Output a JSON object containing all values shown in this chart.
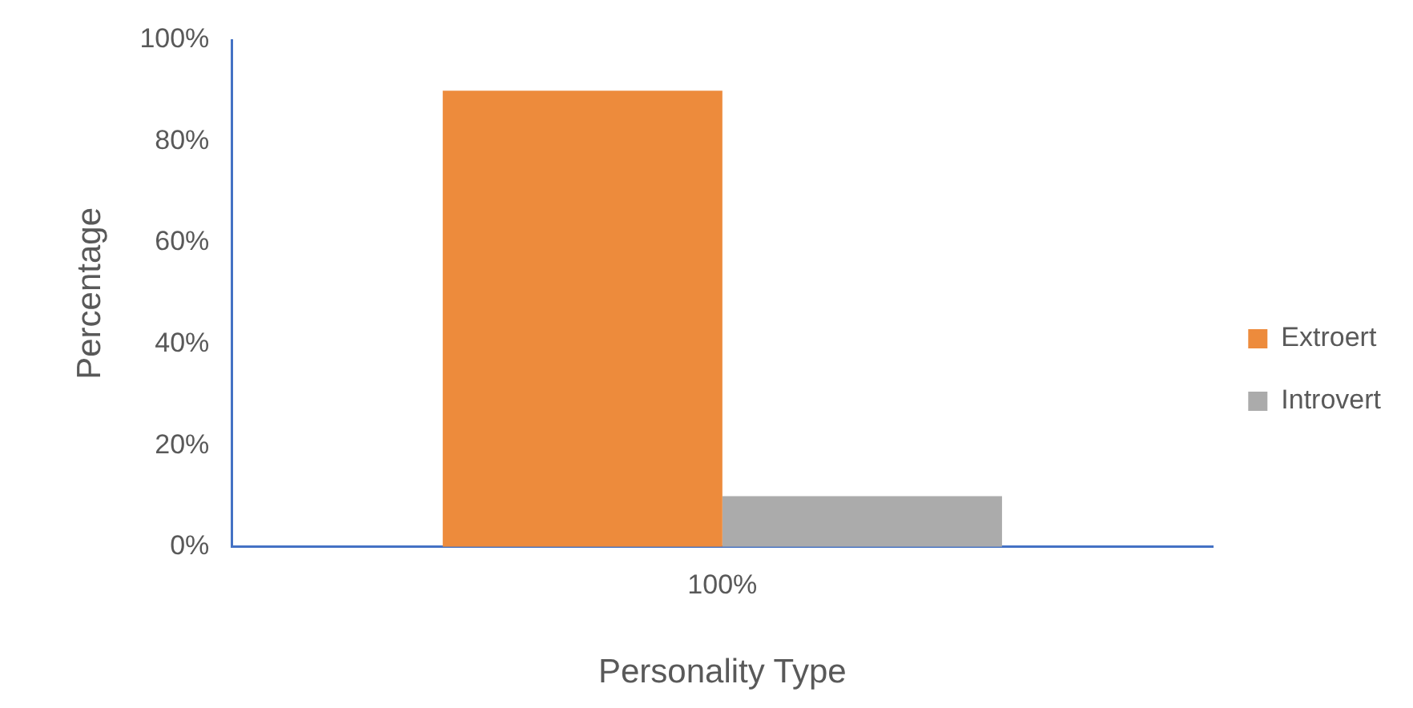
{
  "chart_data": {
    "type": "bar",
    "xlabel": "Personality Type",
    "ylabel": "Percentage",
    "categories": [
      "100%"
    ],
    "series": [
      {
        "name": "Extroert",
        "color": "#ed8b3c",
        "values": [
          90
        ]
      },
      {
        "name": "Introvert",
        "color": "#ababab",
        "values": [
          10
        ]
      }
    ],
    "ylim": [
      0,
      100
    ],
    "yticks": [
      {
        "value": 0,
        "label": "0%"
      },
      {
        "value": 20,
        "label": "20%"
      },
      {
        "value": 40,
        "label": "40%"
      },
      {
        "value": 60,
        "label": "60%"
      },
      {
        "value": 80,
        "label": "80%"
      },
      {
        "value": 100,
        "label": "100%"
      }
    ],
    "grid": false,
    "legend": "right"
  }
}
